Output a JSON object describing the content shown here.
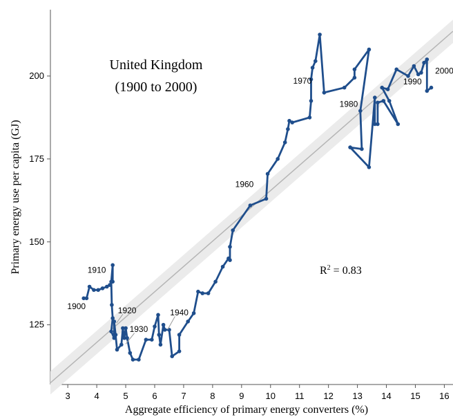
{
  "chart_data": {
    "type": "line",
    "title_line1": "United Kingdom",
    "title_line2": "(1900 to 2000)",
    "xlabel": "Aggregate efficiency of primary energy converters (%)",
    "ylabel": "Primary energy use per capita (GJ)",
    "xlim": [
      2.4,
      16.3
    ],
    "ylim": [
      107,
      220
    ],
    "x_ticks": [
      3,
      4,
      5,
      6,
      7,
      8,
      9,
      10,
      11,
      12,
      13,
      14,
      15,
      16
    ],
    "y_ticks": [
      125,
      150,
      175,
      200
    ],
    "annotation": "R² = 0.83",
    "fit_line": {
      "x0": 2.4,
      "y0": 107.5,
      "x1": 16.3,
      "y1": 213.5,
      "band_halfwidth_gj": 3.5
    },
    "series": [
      {
        "color": "#1f4e8c",
        "points": [
          [
            3.55,
            133
          ],
          [
            3.65,
            133
          ],
          [
            3.75,
            136.5
          ],
          [
            3.9,
            135.5
          ],
          [
            4.05,
            135.5
          ],
          [
            4.2,
            136
          ],
          [
            4.35,
            136.5
          ],
          [
            4.45,
            137
          ],
          [
            4.55,
            138
          ],
          [
            4.55,
            143
          ],
          [
            4.5,
            138
          ],
          [
            4.52,
            131
          ],
          [
            4.55,
            127
          ],
          [
            4.5,
            123
          ],
          [
            4.6,
            121
          ],
          [
            4.6,
            126
          ],
          [
            4.65,
            122
          ],
          [
            4.7,
            117.5
          ],
          [
            4.85,
            119
          ],
          [
            4.9,
            124
          ],
          [
            4.95,
            121
          ],
          [
            5.0,
            124
          ],
          [
            5.05,
            121
          ],
          [
            5.15,
            116.5
          ],
          [
            5.25,
            114.5
          ],
          [
            5.45,
            114.5
          ],
          [
            5.7,
            120.5
          ],
          [
            5.9,
            120.5
          ],
          [
            6.0,
            124.5
          ],
          [
            6.12,
            128
          ],
          [
            6.15,
            122
          ],
          [
            6.2,
            119
          ],
          [
            6.3,
            125
          ],
          [
            6.35,
            123.5
          ],
          [
            6.5,
            123.5
          ],
          [
            6.6,
            115.5
          ],
          [
            6.85,
            117
          ],
          [
            6.85,
            122
          ],
          [
            7.15,
            126
          ],
          [
            7.35,
            128.5
          ],
          [
            7.5,
            135
          ],
          [
            7.65,
            134.5
          ],
          [
            7.85,
            134.5
          ],
          [
            8.1,
            138
          ],
          [
            8.35,
            142.5
          ],
          [
            8.55,
            145
          ],
          [
            8.6,
            144.5
          ],
          [
            8.6,
            148.5
          ],
          [
            8.7,
            153.5
          ],
          [
            9.3,
            161
          ],
          [
            9.85,
            163
          ],
          [
            9.9,
            170.5
          ],
          [
            10.25,
            175
          ],
          [
            10.5,
            180
          ],
          [
            10.6,
            184
          ],
          [
            10.65,
            186.5
          ],
          [
            10.75,
            186
          ],
          [
            11.35,
            187.5
          ],
          [
            11.4,
            192.5
          ],
          [
            11.4,
            199
          ],
          [
            11.45,
            202.5
          ],
          [
            11.55,
            204.5
          ],
          [
            11.7,
            212.5
          ],
          [
            11.85,
            195
          ],
          [
            12.55,
            196.5
          ],
          [
            12.9,
            199.5
          ],
          [
            12.9,
            202
          ],
          [
            13.4,
            208
          ],
          [
            13.1,
            189.5
          ],
          [
            13.15,
            178
          ],
          [
            12.75,
            178.5
          ],
          [
            13.4,
            172.5
          ],
          [
            13.6,
            193.5
          ],
          [
            13.6,
            185.5
          ],
          [
            13.7,
            185.5
          ],
          [
            13.7,
            192
          ],
          [
            13.9,
            192.5
          ],
          [
            14.4,
            185.5
          ],
          [
            14.1,
            192.5
          ],
          [
            13.85,
            196.5
          ],
          [
            14.05,
            196
          ],
          [
            14.35,
            202
          ],
          [
            14.75,
            200
          ],
          [
            14.95,
            203
          ],
          [
            15.1,
            200.5
          ],
          [
            15.2,
            201
          ],
          [
            15.3,
            204
          ],
          [
            15.4,
            205
          ],
          [
            15.4,
            195.5
          ],
          [
            15.55,
            196.5
          ]
        ]
      }
    ],
    "year_labels": [
      {
        "text": "1900",
        "x": 3.3,
        "y": 129.7
      },
      {
        "text": "1910",
        "x": 4.0,
        "y": 140.7
      },
      {
        "text": "1920",
        "x": 5.05,
        "y": 128.5
      },
      {
        "text": "1930",
        "x": 5.45,
        "y": 122.8
      },
      {
        "text": "1940",
        "x": 6.85,
        "y": 127.8
      },
      {
        "text": "1960",
        "x": 9.1,
        "y": 166.5
      },
      {
        "text": "1970",
        "x": 11.1,
        "y": 197.7
      },
      {
        "text": "1980",
        "x": 12.7,
        "y": 190.7
      },
      {
        "text": "1990",
        "x": 14.9,
        "y": 197.5
      },
      {
        "text": "2000",
        "x": 16.0,
        "y": 200.7
      }
    ],
    "year_leaders": [
      [
        [
          4.9,
          128.2
        ],
        [
          4.68,
          125.5
        ]
      ],
      [
        [
          5.3,
          122.5
        ],
        [
          5.0,
          119.2
        ]
      ],
      [
        [
          6.7,
          127.5
        ],
        [
          6.45,
          123.6
        ]
      ]
    ]
  }
}
